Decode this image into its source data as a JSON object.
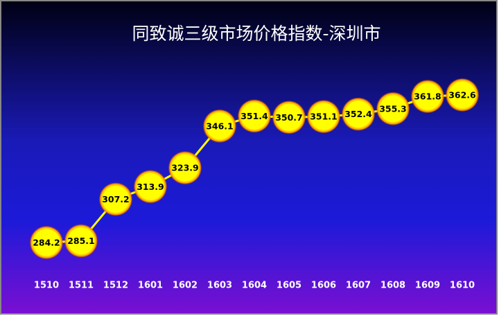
{
  "chart_data": {
    "type": "line",
    "title": "同致诚三级市场价格指数-深圳市",
    "categories": [
      "1510",
      "1511",
      "1512",
      "1601",
      "1602",
      "1603",
      "1604",
      "1605",
      "1606",
      "1607",
      "1608",
      "1609",
      "1610"
    ],
    "values": [
      284.2,
      285.1,
      307.2,
      313.9,
      323.9,
      346.1,
      351.4,
      350.7,
      351.1,
      352.4,
      355.3,
      361.8,
      362.6
    ],
    "color": "#ffff00"
  }
}
